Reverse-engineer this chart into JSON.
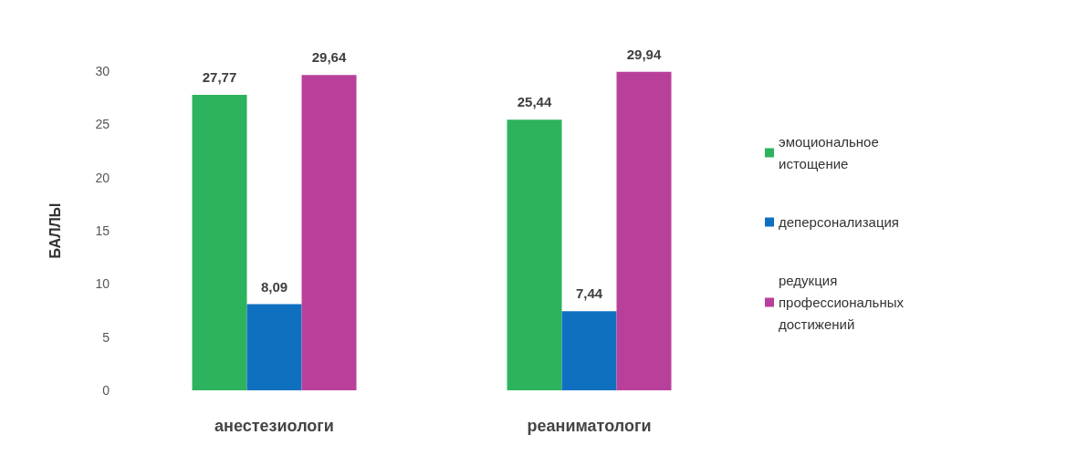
{
  "chart_data": {
    "type": "bar",
    "ylabel": "БАЛЛЫ",
    "categories": [
      "анестезиологи",
      "реаниматологи"
    ],
    "series": [
      {
        "name": "эмоциональное  истощение",
        "color": "#2db35d",
        "values": [
          27.77,
          25.44
        ],
        "value_labels": [
          "27,77",
          "25,44"
        ]
      },
      {
        "name": "деперсонализация",
        "color": "#1070c0",
        "values": [
          8.09,
          7.44
        ],
        "value_labels": [
          "8,09",
          "7,44"
        ]
      },
      {
        "name": "редукция  профессиональных достижений",
        "color": "#b9409a",
        "values": [
          29.64,
          29.94
        ],
        "value_labels": [
          "29,64",
          "29,94"
        ]
      }
    ],
    "ylim": [
      0,
      30
    ],
    "yticks": [
      0,
      5,
      10,
      15,
      20,
      25,
      30
    ],
    "grid": false,
    "legend": "right"
  }
}
